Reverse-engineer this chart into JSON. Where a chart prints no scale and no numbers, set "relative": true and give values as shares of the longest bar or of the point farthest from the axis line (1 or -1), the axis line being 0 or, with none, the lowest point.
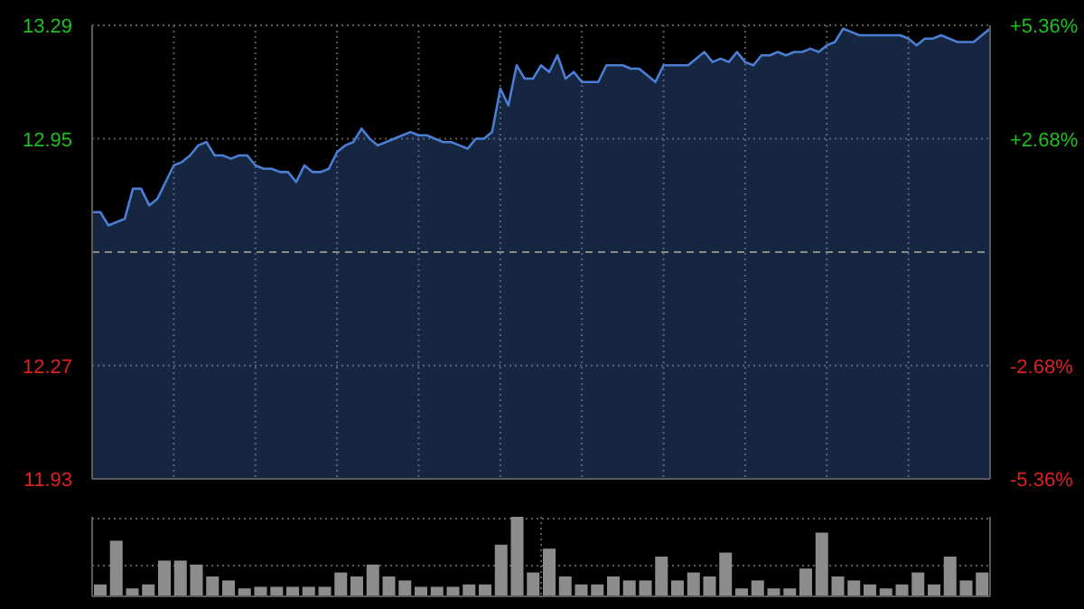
{
  "chart_data": [
    {
      "type": "area",
      "categories": [
        null,
        null,
        null,
        null,
        null,
        null,
        null,
        null,
        null,
        null,
        null,
        null,
        null,
        null,
        null,
        null,
        null,
        null,
        null,
        null,
        null,
        null,
        null,
        null,
        null,
        null,
        null,
        null,
        null,
        null,
        null,
        null,
        null,
        null,
        null,
        null,
        null,
        null,
        null,
        null,
        null,
        null,
        null,
        null,
        null,
        null,
        null,
        null,
        null,
        null,
        null,
        null,
        null,
        null,
        null,
        null,
        null,
        null,
        null,
        null,
        null,
        null,
        null,
        null,
        null,
        null,
        null,
        null,
        null,
        null,
        null,
        null,
        null,
        null,
        null,
        null,
        null,
        null,
        null,
        null,
        null,
        null,
        null,
        null,
        null,
        null,
        null,
        null,
        null,
        null,
        null,
        null,
        null,
        null,
        null,
        null,
        null,
        null,
        null,
        null,
        null,
        null,
        null,
        null,
        null,
        null,
        null,
        null,
        null,
        null,
        null
      ],
      "series": [
        {
          "color": "#4a7fd4",
          "values": [
            12.73,
            12.73,
            12.69,
            12.7,
            12.71,
            12.8,
            12.8,
            12.75,
            12.77,
            12.82,
            12.87,
            12.88,
            12.9,
            12.93,
            12.94,
            12.9,
            12.9,
            12.89,
            12.9,
            12.9,
            12.87,
            12.86,
            12.86,
            12.85,
            12.85,
            12.82,
            12.87,
            12.85,
            12.85,
            12.86,
            12.91,
            12.93,
            12.94,
            12.98,
            12.95,
            12.93,
            12.94,
            12.95,
            12.96,
            12.97,
            12.96,
            12.96,
            12.95,
            12.94,
            12.94,
            12.93,
            12.92,
            12.95,
            12.95,
            12.97,
            13.1,
            13.05,
            13.17,
            13.13,
            13.13,
            13.17,
            13.15,
            13.2,
            13.13,
            13.15,
            13.12,
            13.12,
            13.12,
            13.17,
            13.17,
            13.17,
            13.16,
            13.16,
            13.14,
            13.12,
            13.17,
            13.17,
            13.17,
            13.17,
            13.19,
            13.21,
            13.18,
            13.19,
            13.18,
            13.21,
            13.18,
            13.17,
            13.2,
            13.2,
            13.21,
            13.2,
            13.21,
            13.21,
            13.22,
            13.21,
            13.23,
            13.24,
            13.28,
            13.27,
            13.26,
            13.26,
            13.26,
            13.26,
            13.26,
            13.26,
            13.25,
            13.23,
            13.25,
            13.25,
            13.26,
            13.25,
            13.24,
            13.24,
            13.24,
            13.26,
            13.28
          ]
        }
      ],
      "ylim": [
        11.93,
        13.29
      ],
      "yticks": [
        13.29,
        12.95,
        12.27,
        11.93
      ],
      "y2lim": [
        -5.36,
        5.36
      ],
      "y2ticks": [
        {
          "value": 5.36,
          "label": "+5.36%"
        },
        {
          "value": 2.68,
          "label": "+2.68%"
        },
        {
          "value": -2.68,
          "label": "-2.68%"
        },
        {
          "value": -5.36,
          "label": "-5.36%"
        }
      ],
      "ref_lines": [
        {
          "axis": "y",
          "value": 12.61,
          "line_style": "dashed"
        }
      ],
      "grid": true,
      "tick_labels": "y",
      "legend": false
    },
    {
      "type": "bar",
      "relative": true,
      "categories": [
        null,
        null,
        null,
        null,
        null,
        null,
        null,
        null,
        null,
        null,
        null,
        null,
        null,
        null,
        null,
        null,
        null,
        null,
        null,
        null,
        null,
        null,
        null,
        null,
        null,
        null,
        null,
        null,
        null,
        null,
        null,
        null,
        null,
        null,
        null,
        null,
        null,
        null,
        null,
        null,
        null,
        null,
        null,
        null,
        null,
        null,
        null,
        null,
        null,
        null,
        null,
        null,
        null,
        null,
        null,
        null
      ],
      "series": [
        {
          "color": "#8c8c8c",
          "values": [
            0.15,
            0.7,
            0.1,
            0.15,
            0.45,
            0.45,
            0.4,
            0.25,
            0.2,
            0.1,
            0.12,
            0.12,
            0.12,
            0.12,
            0.12,
            0.3,
            0.25,
            0.4,
            0.25,
            0.2,
            0.12,
            0.12,
            0.12,
            0.15,
            0.15,
            0.65,
            1,
            0.3,
            0.6,
            0.25,
            0.15,
            0.15,
            0.25,
            0.2,
            0.2,
            0.5,
            0.2,
            0.3,
            0.25,
            0.55,
            0.1,
            0.2,
            0.1,
            0.1,
            0.35,
            0.8,
            0.25,
            0.2,
            0.15,
            0.1,
            0.15,
            0.3,
            0.15,
            0.5,
            0.2,
            0.3
          ]
        }
      ],
      "grid": true,
      "tick_labels": false,
      "legend": false
    }
  ]
}
